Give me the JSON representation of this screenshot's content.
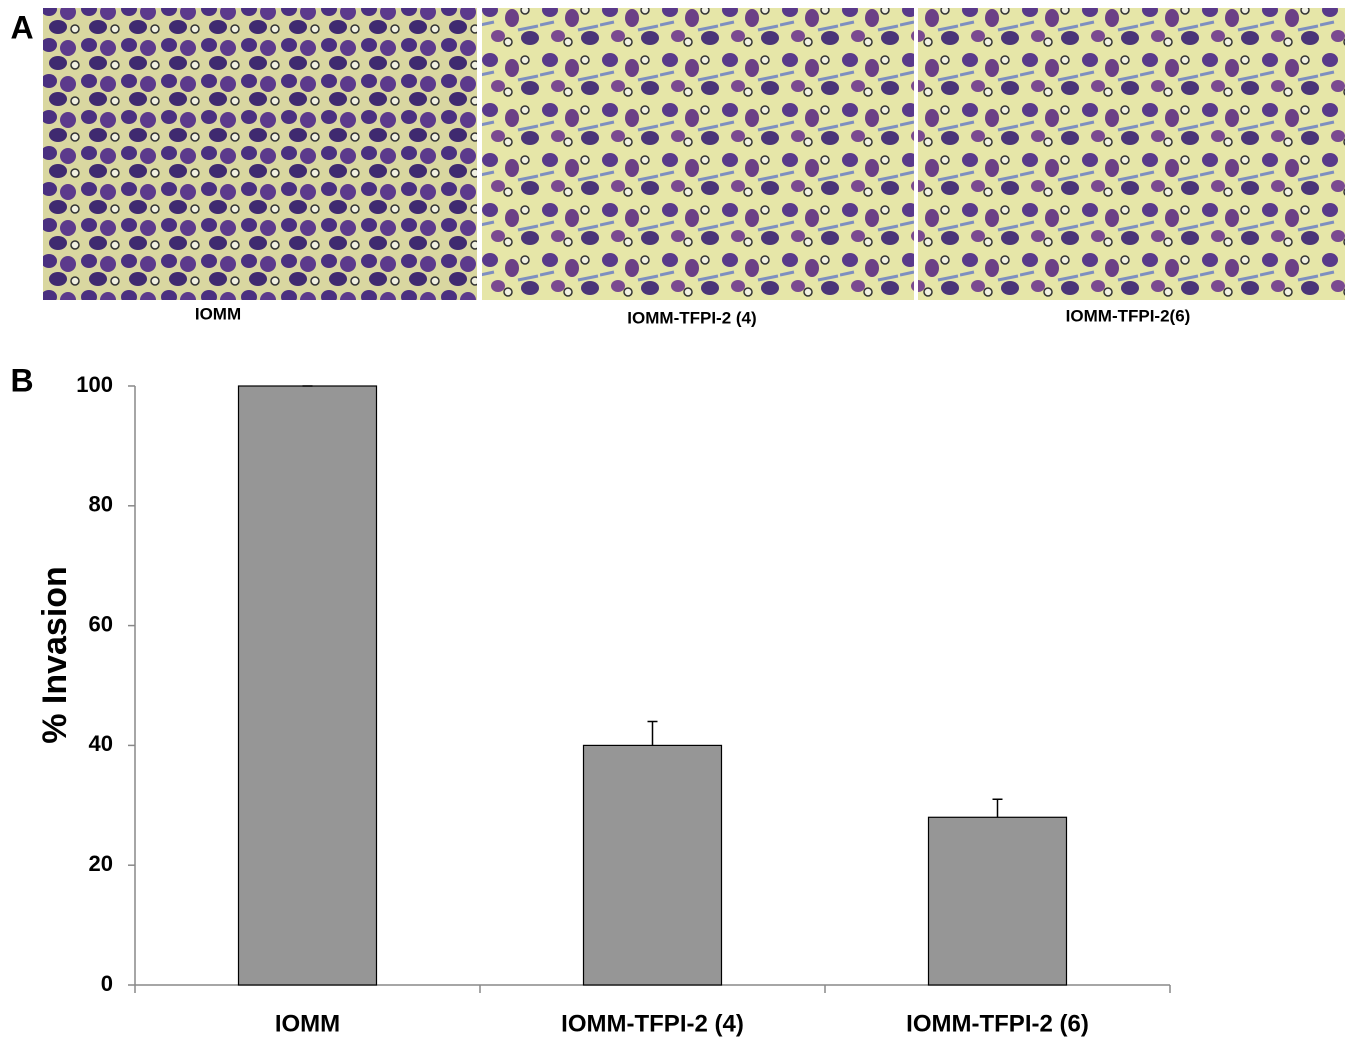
{
  "panel_a": {
    "label": "A",
    "captions": [
      "IOMM",
      "IOMM-TFPI-2 (4)",
      "IOMM-TFPI-2(6)"
    ]
  },
  "panel_b": {
    "label": "B"
  },
  "chart_data": {
    "type": "bar",
    "ylabel": "% Invasion",
    "categories": [
      "IOMM",
      "IOMM-TFPI-2 (4)",
      "IOMM-TFPI-2 (6)"
    ],
    "values": [
      100,
      40,
      28
    ],
    "errors": [
      0,
      4,
      3
    ],
    "color": "#969696",
    "ylim": [
      0,
      100
    ],
    "yticks": [
      0,
      20,
      40,
      60,
      80,
      100
    ],
    "grid": false
  }
}
